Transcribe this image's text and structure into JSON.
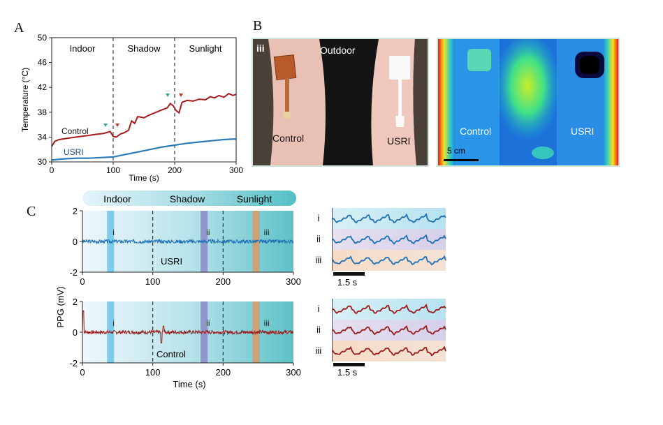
{
  "panels": {
    "a": "A",
    "b": "B",
    "c": "C"
  },
  "panel_b": {
    "photo": {
      "roman": "iii",
      "center": "Outdoor",
      "left": "Control",
      "right": "USRI"
    },
    "thermal": {
      "left": "Control",
      "right": "USRI",
      "scale": "5 cm"
    }
  },
  "panel_c": {
    "phases": [
      "Indoor",
      "Shadow",
      "Sunlight"
    ],
    "ylabel": "PPG (mV)",
    "xlabel": "Time (s)",
    "marks": [
      "i",
      "ii",
      "iii"
    ],
    "scale_bar": "1.5 s",
    "colors": {
      "usri": "#1f6fb5",
      "control": "#9a1b1b"
    }
  },
  "chart_data": [
    {
      "type": "line",
      "panel": "A",
      "xlabel": "Time (s)",
      "ylabel": "Temperature (°C)",
      "xlim": [
        0,
        300
      ],
      "ylim": [
        30,
        50
      ],
      "xticks": [
        0,
        100,
        200,
        300
      ],
      "yticks": [
        30,
        34,
        38,
        42,
        46,
        50
      ],
      "regions": [
        {
          "label": "Indoor",
          "from": 0,
          "to": 100
        },
        {
          "label": "Shadow",
          "from": 100,
          "to": 200
        },
        {
          "label": "Sunlight",
          "from": 200,
          "to": 300
        }
      ],
      "series": [
        {
          "name": "Control",
          "color": "#a51b1b",
          "x": [
            0,
            5,
            12,
            25,
            40,
            55,
            70,
            85,
            95,
            100,
            105,
            112,
            118,
            125,
            130,
            135,
            140,
            150,
            160,
            170,
            180,
            188,
            193,
            198,
            202,
            207,
            212,
            220,
            230,
            240,
            250,
            258,
            265,
            272,
            280,
            288,
            295,
            300
          ],
          "y": [
            32.5,
            33.3,
            33.6,
            33.8,
            34.0,
            34.2,
            34.4,
            34.6,
            34.9,
            34.1,
            34.0,
            34.5,
            34.7,
            35.1,
            36.6,
            36.2,
            37.3,
            37.1,
            37.6,
            38.0,
            38.4,
            38.7,
            39.4,
            39.0,
            38.3,
            37.9,
            39.6,
            39.9,
            39.8,
            40.1,
            40.0,
            40.5,
            40.3,
            40.7,
            40.4,
            41.0,
            40.7,
            40.9
          ]
        },
        {
          "name": "USRI",
          "color": "#2a7ab5",
          "x": [
            0,
            20,
            40,
            60,
            80,
            100,
            120,
            140,
            160,
            180,
            200,
            220,
            240,
            260,
            280,
            300
          ],
          "y": [
            30.3,
            30.5,
            30.6,
            30.6,
            30.7,
            30.8,
            31.2,
            31.6,
            32.0,
            32.4,
            32.7,
            33.0,
            33.2,
            33.4,
            33.6,
            33.7
          ]
        }
      ]
    },
    {
      "type": "line",
      "panel": "C-top",
      "series_label": "USRI",
      "xlim": [
        0,
        300
      ],
      "ylim": [
        -2,
        2
      ],
      "xticks": [
        0,
        100,
        200,
        300
      ],
      "yticks": [
        -2,
        0,
        2
      ],
      "phase_boundaries": [
        100,
        200
      ],
      "highlight_windows": [
        {
          "label": "i",
          "from": 35,
          "to": 45
        },
        {
          "label": "ii",
          "from": 168,
          "to": 178
        },
        {
          "label": "iii",
          "from": 242,
          "to": 252
        }
      ],
      "baseline": 0,
      "noise_amplitude": 0.12
    },
    {
      "type": "line",
      "panel": "C-bottom",
      "series_label": "Control",
      "xlim": [
        0,
        300
      ],
      "ylim": [
        -2,
        2
      ],
      "xticks": [
        0,
        100,
        200,
        300
      ],
      "yticks": [
        -2,
        0,
        2
      ],
      "phase_boundaries": [
        100,
        200
      ],
      "highlight_windows": [
        {
          "label": "i",
          "from": 35,
          "to": 45
        },
        {
          "label": "ii",
          "from": 168,
          "to": 178
        },
        {
          "label": "iii",
          "from": 242,
          "to": 252
        }
      ],
      "baseline": 0,
      "noise_amplitude": 0.12,
      "spikes": [
        {
          "x": 1,
          "y": 1.4
        },
        {
          "x": 112,
          "y": -0.7
        },
        {
          "x": 115,
          "y": 0.4
        }
      ]
    }
  ]
}
